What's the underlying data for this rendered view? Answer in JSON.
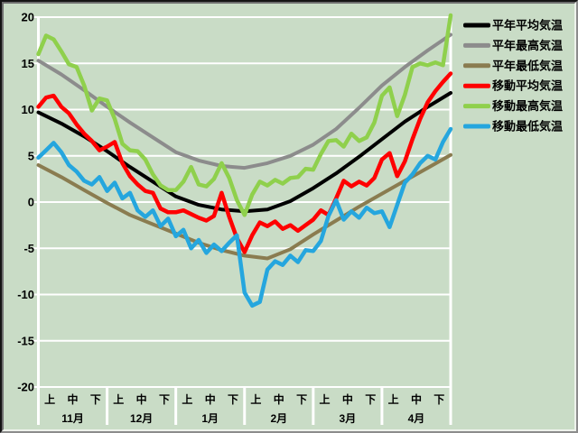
{
  "chart_data": {
    "type": "line",
    "title": "",
    "background_color": "#c9dcc6",
    "gridline_color": "#ffffff",
    "text_color": "#000000",
    "y_axis": {
      "min": -20,
      "max": 20,
      "step": 5,
      "tick_labels": [
        "20",
        "15",
        "10",
        "5",
        "0",
        "-5",
        "-10",
        "-15",
        "-20"
      ]
    },
    "x_axis": {
      "months": [
        "11月",
        "12月",
        "1月",
        "2月",
        "3月",
        "4月"
      ],
      "periods": [
        "上",
        "中",
        "下"
      ]
    },
    "legend": {
      "position": "right"
    },
    "series": [
      {
        "key": "normal-avg",
        "name": "平年平均気温",
        "color": "#000000",
        "stroke_width": 4,
        "points_per_month": 3,
        "values": [
          9.7,
          8.5,
          7.1,
          5.5,
          3.8,
          2.2,
          0.6,
          -0.3,
          -0.8,
          -1.0,
          -0.8,
          0.1,
          1.5,
          3.1,
          4.9,
          6.8,
          8.7,
          10.3,
          11.8
        ]
      },
      {
        "key": "normal-max",
        "name": "平年最高気温",
        "color": "#8c8c8c",
        "stroke_width": 4,
        "points_per_month": 3,
        "values": [
          15.3,
          13.8,
          12.1,
          10.3,
          8.6,
          7.0,
          5.4,
          4.5,
          3.9,
          3.7,
          4.2,
          5.0,
          6.2,
          7.9,
          10.2,
          12.6,
          14.6,
          16.4,
          18.1
        ]
      },
      {
        "key": "normal-min",
        "name": "平年最低気温",
        "color": "#8a7c50",
        "stroke_width": 4,
        "points_per_month": 3,
        "values": [
          4.0,
          2.7,
          1.3,
          -0.1,
          -1.4,
          -2.4,
          -3.4,
          -4.4,
          -5.2,
          -5.8,
          -6.1,
          -5.1,
          -3.5,
          -2.0,
          -0.5,
          0.9,
          2.3,
          3.7,
          5.1
        ]
      },
      {
        "key": "moving-avg",
        "name": "移動平均気温",
        "color": "#ff0000",
        "stroke_width": 4.5,
        "points_per_month": 9,
        "values": [
          10.3,
          11.3,
          11.5,
          10.3,
          9.6,
          8.4,
          7.4,
          6.6,
          5.6,
          6.0,
          6.5,
          4.2,
          2.8,
          1.9,
          1.2,
          1.0,
          -0.7,
          -1.1,
          -1.1,
          -0.9,
          -1.3,
          -1.7,
          -2.0,
          -1.5,
          1.0,
          -1.6,
          -3.9,
          -5.4,
          -3.6,
          -2.2,
          -2.6,
          -2.1,
          -2.9,
          -2.5,
          -3.1,
          -2.5,
          -1.9,
          -0.9,
          -1.4,
          0.4,
          2.3,
          1.7,
          2.2,
          1.8,
          2.6,
          4.6,
          5.3,
          2.8,
          4.4,
          6.8,
          9.0,
          10.8,
          12.0,
          13.0,
          13.9
        ]
      },
      {
        "key": "moving-max",
        "name": "移動最高気温",
        "color": "#8fd04c",
        "stroke_width": 4.5,
        "points_per_month": 9,
        "values": [
          16.0,
          18.0,
          17.6,
          16.3,
          14.9,
          14.6,
          12.6,
          9.9,
          11.2,
          11.0,
          9.0,
          6.3,
          5.6,
          5.5,
          4.6,
          3.0,
          1.8,
          1.3,
          1.3,
          2.2,
          3.8,
          1.9,
          1.7,
          2.5,
          4.2,
          2.6,
          0.2,
          -1.4,
          0.8,
          2.2,
          1.8,
          2.4,
          2.0,
          2.6,
          2.7,
          3.6,
          3.5,
          5.2,
          6.6,
          6.7,
          6.0,
          7.4,
          6.6,
          7.0,
          8.6,
          11.5,
          12.4,
          9.3,
          11.6,
          14.6,
          15.0,
          14.8,
          15.1,
          14.8,
          20.2
        ]
      },
      {
        "key": "moving-min",
        "name": "移動最低気温",
        "color": "#25a6de",
        "stroke_width": 4.5,
        "points_per_month": 9,
        "values": [
          4.8,
          5.6,
          6.4,
          5.4,
          4.0,
          3.3,
          2.3,
          1.9,
          2.7,
          1.2,
          2.1,
          0.4,
          1.0,
          -0.9,
          -1.6,
          -0.9,
          -2.6,
          -1.8,
          -3.7,
          -3.0,
          -5.0,
          -4.1,
          -5.5,
          -4.6,
          -5.3,
          -4.4,
          -3.6,
          -9.8,
          -11.2,
          -10.8,
          -7.3,
          -6.4,
          -6.8,
          -5.8,
          -6.5,
          -5.2,
          -5.3,
          -4.2,
          -1.5,
          0.2,
          -1.9,
          -1.0,
          -1.7,
          -0.6,
          -1.2,
          -1.0,
          -2.7,
          -0.3,
          2.1,
          3.0,
          4.2,
          5.0,
          4.6,
          6.5,
          7.9
        ]
      }
    ]
  }
}
